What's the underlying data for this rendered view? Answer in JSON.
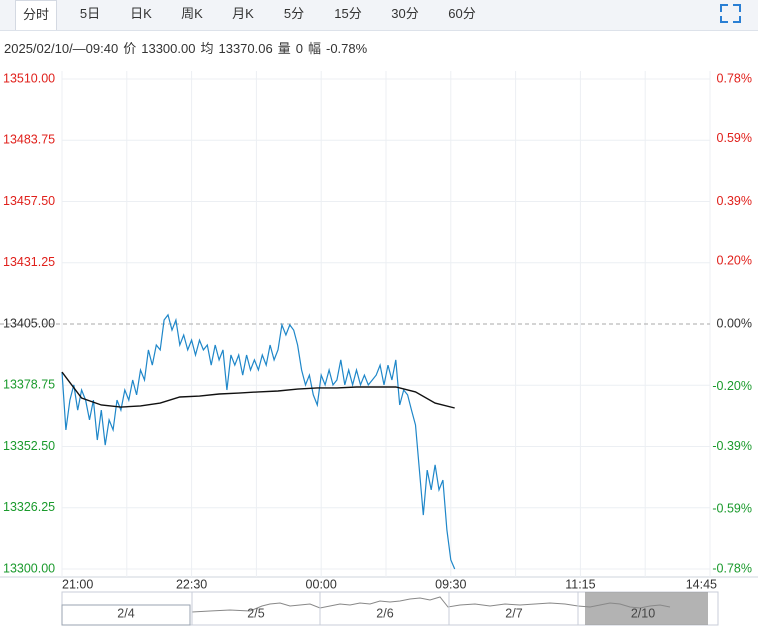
{
  "tabs": [
    "分时",
    "5日",
    "日K",
    "周K",
    "月K",
    "5分",
    "15分",
    "30分",
    "60分"
  ],
  "selected_tab": 0,
  "info": {
    "time": "2025/02/10/—09:40",
    "price_label": "价",
    "price": "13300.00",
    "avg_label": "均",
    "avg": "13370.06",
    "vol_label": "量",
    "vol": "0",
    "range_label": "幅",
    "range": "-0.78%"
  },
  "chart_data": {
    "type": "line",
    "xlim": [
      0,
      165
    ],
    "xticks": [
      {
        "value": 0,
        "label": "21:00"
      },
      {
        "value": 33,
        "label": "22:30"
      },
      {
        "value": 66,
        "label": "00:00"
      },
      {
        "value": 99,
        "label": "09:30"
      },
      {
        "value": 132,
        "label": "11:15"
      },
      {
        "value": 165,
        "label": "14:45"
      }
    ],
    "ylim": [
      13300,
      13510
    ],
    "yticks": [
      {
        "value": 13510,
        "label": "13510.00"
      },
      {
        "value": 13483.75,
        "label": "13483.75"
      },
      {
        "value": 13457.5,
        "label": "13457.50"
      },
      {
        "value": 13431.25,
        "label": "13431.25"
      },
      {
        "value": 13405,
        "label": "13405.00"
      },
      {
        "value": 13378.75,
        "label": "13378.75"
      },
      {
        "value": 13352.5,
        "label": "13352.50"
      },
      {
        "value": 13326.25,
        "label": "13326.25"
      },
      {
        "value": 13300,
        "label": "13300.00"
      }
    ],
    "y2lim": [
      -0.78,
      0.78
    ],
    "y2ticks": [
      {
        "value": 0.78,
        "label": "0.78%"
      },
      {
        "value": 0.59,
        "label": "0.59%"
      },
      {
        "value": 0.39,
        "label": "0.39%"
      },
      {
        "value": 0.2,
        "label": "0.20%"
      },
      {
        "value": 0,
        "label": "0.00%"
      },
      {
        "value": -0.2,
        "label": "-0.20%"
      },
      {
        "value": -0.39,
        "label": "-0.39%"
      },
      {
        "value": -0.59,
        "label": "-0.59%"
      },
      {
        "value": -0.78,
        "label": "-0.78%"
      }
    ],
    "baseline": 13405,
    "up_color": "#e0201b",
    "down_color": "#1a9a2c",
    "flat_color": "#333333",
    "grid": true,
    "series": [
      {
        "color": "#1f87c9",
        "x": [
          0,
          1,
          2,
          3,
          4,
          5,
          6,
          7,
          8,
          9,
          10,
          11,
          12,
          13,
          14,
          15,
          16,
          17,
          18,
          19,
          20,
          21,
          22,
          23,
          24,
          25,
          26,
          27,
          28,
          29,
          30,
          31,
          32,
          33,
          34,
          35,
          36,
          37,
          38,
          39,
          40,
          41,
          42,
          43,
          44,
          45,
          46,
          47,
          48,
          49,
          50,
          51,
          52,
          53,
          54,
          55,
          56,
          57,
          58,
          59,
          60,
          61,
          62,
          63,
          64,
          65,
          66,
          67,
          68,
          69,
          70,
          71,
          72,
          73,
          74,
          75,
          76,
          77,
          78,
          79,
          80,
          81,
          82,
          83,
          84,
          85,
          86,
          87,
          88,
          89,
          90,
          91,
          92,
          93,
          94,
          95,
          96,
          97,
          98,
          99,
          100
        ],
        "values": [
          13384.4,
          13359.6,
          13372.4,
          13378.9,
          13368.1,
          13376.7,
          13372.4,
          13363.9,
          13372.4,
          13355.3,
          13368.1,
          13353.1,
          13363.9,
          13359.6,
          13372.4,
          13368.1,
          13376.7,
          13372.4,
          13381,
          13374.6,
          13385.3,
          13381,
          13393.9,
          13387.4,
          13396,
          13393.9,
          13406.7,
          13408.9,
          13402.4,
          13406.7,
          13396,
          13400.3,
          13393.9,
          13398.1,
          13391.7,
          13398.1,
          13393.9,
          13396,
          13387.4,
          13396,
          13389.6,
          13393.9,
          13376.7,
          13391.7,
          13387.4,
          13391.7,
          13383.1,
          13391.7,
          13385.3,
          13389.6,
          13385.3,
          13391.7,
          13387.4,
          13396,
          13389.6,
          13393.9,
          13404.6,
          13400.3,
          13404.6,
          13402.4,
          13396,
          13385.3,
          13378.9,
          13383.1,
          13374.6,
          13370.3,
          13383.1,
          13378.9,
          13385.3,
          13378.9,
          13381,
          13389.6,
          13378.9,
          13385.3,
          13378.9,
          13385.3,
          13378.9,
          13383.1,
          13378.9,
          13381,
          13383.1,
          13387.4,
          13378.9,
          13387.4,
          13381,
          13389.6,
          13370.3,
          13376.7,
          13374.6,
          13368.1,
          13361.7,
          13342.4,
          13323.1,
          13342.4,
          13333.9,
          13344.6,
          13333.9,
          13338.1,
          13316.7,
          13303.9,
          13300
        ]
      },
      {
        "color": "#111111",
        "x": [
          0,
          5,
          10,
          15,
          20,
          25,
          30,
          35,
          40,
          45,
          50,
          55,
          60,
          65,
          70,
          75,
          80,
          85,
          90,
          95,
          100
        ],
        "values": [
          13384.4,
          13373.3,
          13370.3,
          13369.4,
          13369.9,
          13371.1,
          13373.7,
          13374.1,
          13375,
          13375.4,
          13375.9,
          13376.3,
          13377.1,
          13377.6,
          13377.6,
          13378,
          13378,
          13378,
          13375.9,
          13371.1,
          13369
        ]
      }
    ]
  },
  "navigator": {
    "dates": [
      "2/4",
      "2/5",
      "2/6",
      "2/7",
      "2/10"
    ]
  }
}
